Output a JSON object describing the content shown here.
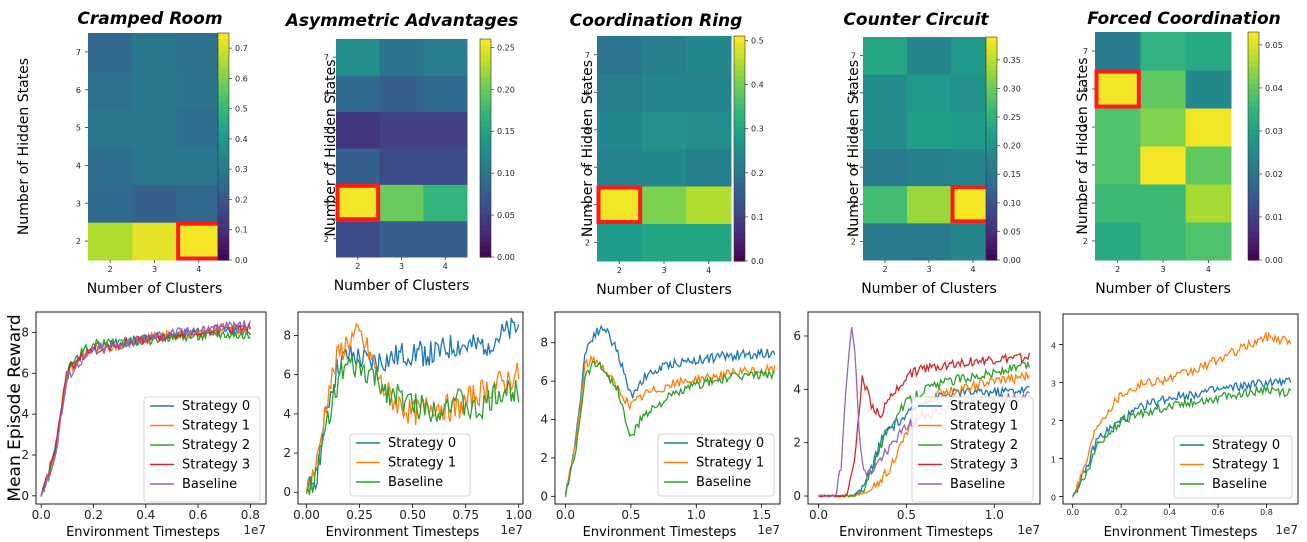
{
  "heatmaps": [
    {
      "title": "Cramped Room",
      "xlabel": "Number of Clusters",
      "ylabel": "Number of Hidden States",
      "x": [
        "2",
        "3",
        "4"
      ],
      "y": [
        "2",
        "3",
        "4",
        "5",
        "6",
        "7"
      ],
      "values": [
        [
          0.66,
          0.72,
          0.74
        ],
        [
          0.26,
          0.23,
          0.25
        ],
        [
          0.27,
          0.3,
          0.3
        ],
        [
          0.3,
          0.3,
          0.27
        ],
        [
          0.28,
          0.3,
          0.29
        ],
        [
          0.25,
          0.3,
          0.28
        ]
      ],
      "vmax": 0.75,
      "cbar_ticks": [
        "0.0",
        "0.1",
        "0.2",
        "0.3",
        "0.4",
        "0.5",
        "0.6",
        "0.7"
      ],
      "cbar_tick_values": [
        0,
        0.1,
        0.2,
        0.3,
        0.4,
        0.5,
        0.6,
        0.7
      ],
      "highlight": {
        "x": "4",
        "y": "2"
      }
    },
    {
      "title": "Asymmetric Advantages",
      "xlabel": "Number of Clusters",
      "ylabel": "Number of Hidden States",
      "x": [
        "2",
        "3",
        "4"
      ],
      "y": [
        "2",
        "3",
        "4",
        "5",
        "6",
        "7"
      ],
      "values": [
        [
          0.06,
          0.08,
          0.08
        ],
        [
          0.255,
          0.2,
          0.17
        ],
        [
          0.08,
          0.06,
          0.06
        ],
        [
          0.04,
          0.05,
          0.05
        ],
        [
          0.09,
          0.08,
          0.09
        ],
        [
          0.13,
          0.1,
          0.11
        ]
      ],
      "vmax": 0.26,
      "cbar_ticks": [
        "0.00",
        "0.05",
        "0.10",
        "0.15",
        "0.20",
        "0.25"
      ],
      "cbar_tick_values": [
        0,
        0.05,
        0.1,
        0.15,
        0.2,
        0.25
      ],
      "highlight": {
        "x": "2",
        "y": "3"
      }
    },
    {
      "title": "Coordination Ring",
      "xlabel": "Number of Clusters",
      "ylabel": "Number of Hidden States",
      "x": [
        "2",
        "3",
        "4"
      ],
      "y": [
        "2",
        "3",
        "4",
        "5",
        "6",
        "7"
      ],
      "values": [
        [
          0.28,
          0.3,
          0.3
        ],
        [
          0.5,
          0.41,
          0.45
        ],
        [
          0.23,
          0.24,
          0.22
        ],
        [
          0.24,
          0.26,
          0.25
        ],
        [
          0.22,
          0.23,
          0.23
        ],
        [
          0.2,
          0.22,
          0.24
        ]
      ],
      "vmax": 0.51,
      "cbar_ticks": [
        "0.0",
        "0.1",
        "0.2",
        "0.3",
        "0.4",
        "0.5"
      ],
      "cbar_tick_values": [
        0,
        0.1,
        0.2,
        0.3,
        0.4,
        0.5
      ],
      "highlight": {
        "x": "2",
        "y": "3"
      }
    },
    {
      "title": "Counter Circuit",
      "xlabel": "Number of Clusters",
      "ylabel": "Number of Hidden States",
      "x": [
        "2",
        "3",
        "4"
      ],
      "y": [
        "2",
        "3",
        "4",
        "5",
        "6",
        "7"
      ],
      "values": [
        [
          0.16,
          0.16,
          0.18
        ],
        [
          0.27,
          0.33,
          0.385
        ],
        [
          0.16,
          0.17,
          0.18
        ],
        [
          0.19,
          0.22,
          0.21
        ],
        [
          0.19,
          0.21,
          0.2
        ],
        [
          0.23,
          0.18,
          0.21
        ]
      ],
      "vmax": 0.39,
      "cbar_ticks": [
        "0.00",
        "0.05",
        "0.10",
        "0.15",
        "0.20",
        "0.25",
        "0.30",
        "0.35"
      ],
      "cbar_tick_values": [
        0,
        0.05,
        0.1,
        0.15,
        0.2,
        0.25,
        0.3,
        0.35
      ],
      "highlight": {
        "x": "4",
        "y": "3"
      }
    },
    {
      "title": "Forced Coordination",
      "xlabel": "Number of Clusters",
      "ylabel": "Number of Hidden States",
      "x": [
        "2",
        "3",
        "4"
      ],
      "y": [
        "2",
        "3",
        "4",
        "5",
        "6",
        "7"
      ],
      "values": [
        [
          0.032,
          0.036,
          0.038
        ],
        [
          0.036,
          0.036,
          0.046
        ],
        [
          0.038,
          0.052,
          0.04
        ],
        [
          0.038,
          0.043,
          0.052
        ],
        [
          0.052,
          0.04,
          0.025
        ],
        [
          0.022,
          0.034,
          0.032
        ]
      ],
      "vmax": 0.053,
      "cbar_ticks": [
        "0.00",
        "0.01",
        "0.02",
        "0.03",
        "0.04",
        "0.05"
      ],
      "cbar_tick_values": [
        0,
        0.01,
        0.02,
        0.03,
        0.04,
        0.05
      ],
      "highlight": {
        "x": "2",
        "y": "6"
      }
    }
  ],
  "shared_ylabel": "Mean Episode Reward",
  "chart_data": [
    {
      "type": "line",
      "xlabel": "Environment Timesteps",
      "x_multiplier": "1e7",
      "xlim": [
        -0.2,
        8.6
      ],
      "ylim": [
        -0.4,
        9.0
      ],
      "x_ticks": [
        "0.0",
        "0.2",
        "0.4",
        "0.6",
        "0.8"
      ],
      "x_tick_values": [
        0,
        2,
        4,
        6,
        8
      ],
      "y_ticks": [
        "0",
        "2",
        "4",
        "6",
        "8"
      ],
      "y_tick_values": [
        0,
        2,
        4,
        6,
        8
      ],
      "series": [
        {
          "name": "Strategy 0",
          "color": "#1f77b4",
          "x": [
            0,
            0.5,
            1,
            1.5,
            2,
            3,
            4,
            5,
            6,
            7,
            8
          ],
          "y": [
            0,
            2.0,
            6.2,
            6.9,
            7.3,
            7.5,
            7.7,
            7.9,
            8.0,
            8.1,
            8.1
          ]
        },
        {
          "name": "Strategy 1",
          "color": "#ff7f0e",
          "x": [
            0,
            0.5,
            1,
            1.5,
            2,
            3,
            4,
            5,
            6,
            7,
            8
          ],
          "y": [
            0,
            1.8,
            6.0,
            6.8,
            7.2,
            7.4,
            7.7,
            7.9,
            8.0,
            8.1,
            8.2
          ]
        },
        {
          "name": "Strategy 2",
          "color": "#2ca02c",
          "x": [
            0,
            0.5,
            1,
            1.5,
            2,
            3,
            4,
            5,
            6,
            7,
            8
          ],
          "y": [
            0,
            1.9,
            5.9,
            7.0,
            7.4,
            7.5,
            7.6,
            7.8,
            7.8,
            7.9,
            7.8
          ]
        },
        {
          "name": "Strategy 3",
          "color": "#d62728",
          "x": [
            0,
            0.5,
            1,
            1.5,
            2,
            3,
            4,
            5,
            6,
            7,
            8
          ],
          "y": [
            0,
            2.1,
            6.1,
            6.8,
            7.1,
            7.4,
            7.7,
            7.9,
            8.0,
            8.2,
            8.3
          ]
        },
        {
          "name": "Baseline",
          "color": "#9467bd",
          "x": [
            0,
            0.5,
            1,
            1.5,
            2,
            3,
            4,
            5,
            6,
            7,
            8
          ],
          "y": [
            0,
            1.7,
            5.8,
            6.6,
            7.1,
            7.4,
            7.7,
            8.0,
            8.1,
            8.3,
            8.4
          ]
        }
      ]
    },
    {
      "type": "line",
      "xlabel": "Environment Timesteps",
      "x_multiplier": "1e7",
      "xlim": [
        -0.4,
        10.2
      ],
      "ylim": [
        -0.6,
        9.2
      ],
      "x_ticks": [
        "0.00",
        "0.25",
        "0.50",
        "0.75",
        "1.00"
      ],
      "x_tick_values": [
        0,
        2.5,
        5,
        7.5,
        10
      ],
      "y_ticks": [
        "0",
        "2",
        "4",
        "6",
        "8"
      ],
      "y_tick_values": [
        0,
        2,
        4,
        6,
        8
      ],
      "series": [
        {
          "name": "Strategy 0",
          "color": "#1f77b4",
          "x": [
            0,
            0.5,
            1,
            1.5,
            2,
            2.5,
            3,
            4,
            5,
            6,
            7,
            8,
            9,
            10
          ],
          "y": [
            0,
            1.0,
            4.5,
            6.5,
            7.0,
            6.8,
            6.6,
            6.8,
            7.2,
            7.0,
            7.5,
            7.4,
            7.9,
            8.4
          ]
        },
        {
          "name": "Strategy 1",
          "color": "#ff7f0e",
          "x": [
            0,
            0.5,
            1,
            1.5,
            2,
            2.5,
            3,
            3.5,
            4,
            5,
            6,
            7,
            8,
            9,
            10
          ],
          "y": [
            0,
            1.5,
            5.0,
            7.0,
            7.8,
            8.0,
            7.0,
            5.5,
            4.8,
            4.0,
            4.5,
            4.2,
            5.0,
            5.5,
            6.0
          ]
        },
        {
          "name": "Baseline",
          "color": "#2ca02c",
          "x": [
            0,
            0.5,
            1,
            1.5,
            2,
            3,
            4,
            5,
            6,
            7,
            8,
            9,
            10
          ],
          "y": [
            0,
            1.0,
            3.8,
            5.8,
            6.4,
            6.0,
            5.0,
            4.5,
            4.2,
            4.8,
            4.0,
            5.0,
            5.2
          ]
        }
      ]
    },
    {
      "type": "line",
      "xlabel": "Environment Timesteps",
      "x_multiplier": "1e7",
      "xlim": [
        -0.8,
        16.4
      ],
      "ylim": [
        -0.4,
        9.6
      ],
      "x_ticks": [
        "0.0",
        "0.5",
        "1.0",
        "1.5"
      ],
      "x_tick_values": [
        0,
        5,
        10,
        15
      ],
      "y_ticks": [
        "0",
        "2",
        "4",
        "6",
        "8"
      ],
      "y_tick_values": [
        0,
        2,
        4,
        6,
        8
      ],
      "series": [
        {
          "name": "Strategy 0",
          "color": "#1f77b4",
          "x": [
            0,
            0.8,
            1.5,
            2.2,
            3,
            4,
            5,
            6,
            8,
            10,
            12,
            14,
            16
          ],
          "y": [
            0,
            3.0,
            7.5,
            8.5,
            8.8,
            7.5,
            5.2,
            6.2,
            6.9,
            7.1,
            7.3,
            7.4,
            7.5
          ]
        },
        {
          "name": "Strategy 1",
          "color": "#ff7f0e",
          "x": [
            0,
            0.8,
            1.5,
            2.2,
            3,
            4,
            5,
            6,
            8,
            10,
            12,
            14,
            16
          ],
          "y": [
            0,
            2.8,
            6.8,
            7.2,
            6.6,
            5.6,
            4.7,
            5.3,
            5.8,
            6.1,
            6.3,
            6.5,
            6.6
          ]
        },
        {
          "name": "Baseline",
          "color": "#2ca02c",
          "x": [
            0,
            0.8,
            1.5,
            2.2,
            3,
            4,
            5,
            6,
            8,
            10,
            12,
            14,
            16
          ],
          "y": [
            0,
            2.5,
            6.3,
            7.0,
            6.6,
            5.5,
            3.0,
            4.3,
            5.2,
            5.8,
            6.1,
            6.3,
            6.4
          ]
        }
      ]
    },
    {
      "type": "line",
      "xlabel": "Environment Timesteps",
      "x_multiplier": "1e7",
      "xlim": [
        -0.6,
        12.6
      ],
      "ylim": [
        -0.3,
        6.9
      ],
      "x_ticks": [
        "0.0",
        "0.5",
        "1.0"
      ],
      "x_tick_values": [
        0,
        5,
        10
      ],
      "y_ticks": [
        "0",
        "2",
        "4",
        "6"
      ],
      "y_tick_values": [
        0,
        2,
        4,
        6
      ],
      "series": [
        {
          "name": "Strategy 0",
          "color": "#1f77b4",
          "x": [
            0,
            2,
            2.5,
            3,
            3.5,
            4,
            5,
            6,
            8,
            10,
            12
          ],
          "y": [
            0,
            0,
            0.3,
            1.0,
            2.0,
            2.5,
            3.0,
            3.6,
            3.9,
            3.9,
            4.0
          ]
        },
        {
          "name": "Strategy 1",
          "color": "#ff7f0e",
          "x": [
            0,
            2,
            3,
            4,
            5,
            6,
            7,
            8,
            10,
            12
          ],
          "y": [
            0,
            0,
            0.2,
            1.0,
            2.3,
            3.4,
            3.9,
            4.0,
            4.3,
            4.5
          ]
        },
        {
          "name": "Strategy 2",
          "color": "#2ca02c",
          "x": [
            0,
            2,
            2.5,
            3,
            4,
            5,
            6,
            8,
            10,
            12
          ],
          "y": [
            0,
            0,
            0.2,
            1.0,
            2.6,
            3.5,
            4.0,
            4.4,
            4.6,
            4.9
          ]
        },
        {
          "name": "Strategy 3",
          "color": "#d62728",
          "x": [
            0,
            1.5,
            2,
            2.5,
            3,
            3.5,
            4,
            5,
            6,
            8,
            10,
            12
          ],
          "y": [
            0,
            0,
            1.0,
            4.5,
            3.4,
            3.0,
            3.6,
            4.5,
            4.8,
            5.0,
            5.1,
            5.2
          ]
        },
        {
          "name": "Baseline",
          "color": "#9467bd",
          "x": [
            0,
            1,
            1.3,
            1.6,
            1.9,
            2.1,
            2.3,
            2.6,
            3,
            4,
            5,
            6,
            8,
            10,
            12
          ],
          "y": [
            0,
            0,
            1.2,
            4.5,
            6.6,
            5.0,
            2.5,
            0.8,
            0.9,
            1.8,
            2.6,
            3.0,
            3.4,
            3.6,
            3.8
          ]
        }
      ]
    },
    {
      "type": "line",
      "xlabel": "Environment Timesteps",
      "x_multiplier": "1e7",
      "xlim": [
        -0.4,
        9.3
      ],
      "ylim": [
        -0.2,
        4.8
      ],
      "x_ticks": [
        "0.0",
        "0.2",
        "0.4",
        "0.6",
        "0.8"
      ],
      "x_tick_values": [
        0,
        2,
        4,
        6,
        8
      ],
      "y_ticks": [
        "0",
        "1",
        "2",
        "3",
        "4"
      ],
      "y_tick_values": [
        0,
        1,
        2,
        3,
        4
      ],
      "series": [
        {
          "name": "Strategy 0",
          "color": "#1f77b4",
          "x": [
            0,
            0.5,
            1,
            2,
            3,
            4,
            5,
            6,
            7,
            8,
            9
          ],
          "y": [
            0,
            0.6,
            1.5,
            2.0,
            2.4,
            2.6,
            2.7,
            2.8,
            2.9,
            3.0,
            3.0
          ]
        },
        {
          "name": "Strategy 1",
          "color": "#ff7f0e",
          "x": [
            0,
            0.5,
            1,
            2,
            3,
            4,
            5,
            6,
            7,
            8,
            9
          ],
          "y": [
            0,
            0.8,
            1.9,
            2.7,
            3.0,
            3.1,
            3.3,
            3.6,
            3.9,
            4.2,
            4.1
          ]
        },
        {
          "name": "Baseline",
          "color": "#2ca02c",
          "x": [
            0,
            0.5,
            1,
            2,
            3,
            4,
            5,
            6,
            7,
            8,
            9
          ],
          "y": [
            0,
            0.5,
            1.3,
            2.0,
            2.2,
            2.4,
            2.5,
            2.6,
            2.7,
            2.8,
            2.7
          ]
        }
      ]
    }
  ]
}
